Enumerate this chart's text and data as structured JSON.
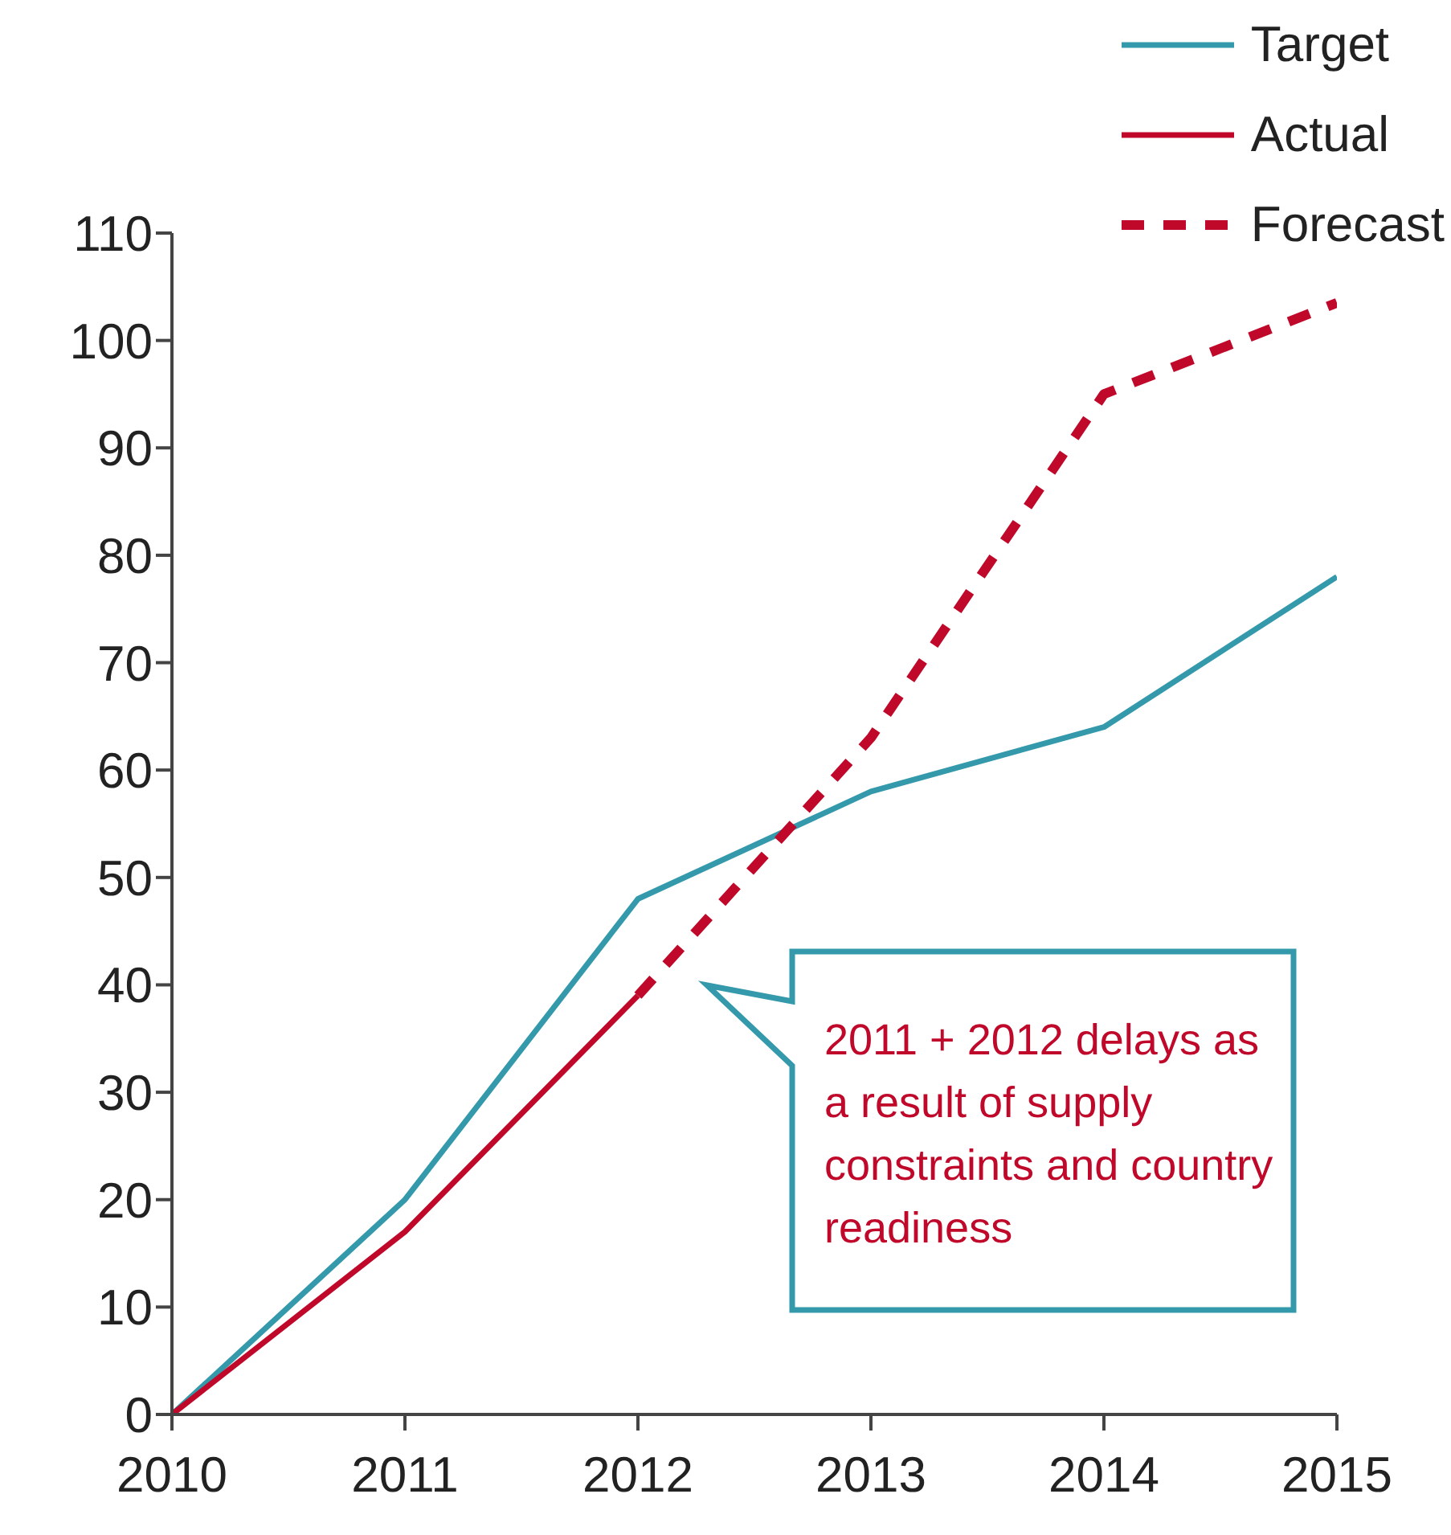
{
  "chart_data": {
    "type": "line",
    "x": [
      2010,
      2011,
      2012,
      2013,
      2014,
      2015
    ],
    "series": [
      {
        "name": "Target",
        "color": "#3399ab",
        "values": [
          0,
          20,
          48,
          58,
          64,
          78
        ]
      },
      {
        "name": "Actual",
        "color": "#c0092a",
        "values": [
          0,
          17,
          39,
          null,
          null,
          null
        ]
      },
      {
        "name": "Forecast",
        "color": "#c0092a",
        "line_style": "dashed",
        "x": [
          2012,
          2013,
          2014,
          2015
        ],
        "values": [
          39,
          63,
          95,
          103.5
        ]
      }
    ],
    "xlim": [
      2010,
      2015
    ],
    "xticks": [
      2010,
      2011,
      2012,
      2013,
      2014,
      2015
    ],
    "ylim": [
      0,
      110
    ],
    "yticks": [
      0,
      10,
      20,
      30,
      40,
      50,
      60,
      70,
      80,
      90,
      100,
      110
    ],
    "grid": false,
    "legend": "top right",
    "marker": "none",
    "annotations": [
      "2011 + 2012 delays as a result of supply constraints and country readiness"
    ]
  }
}
